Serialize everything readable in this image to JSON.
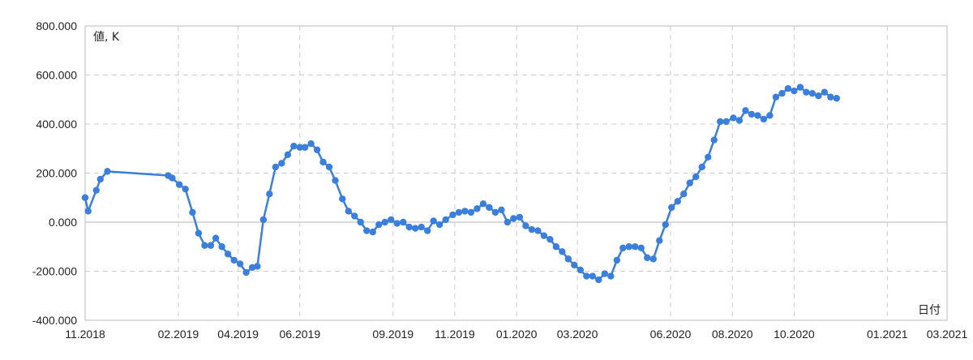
{
  "chart_data": {
    "type": "line",
    "title": "",
    "ylabel": "値, K",
    "xlabel": "日付",
    "ylim": [
      -400000,
      800000
    ],
    "xlim": [
      "2018-11-01",
      "2021-03-01"
    ],
    "y_ticks": [
      {
        "value": 800000,
        "label": "800.000"
      },
      {
        "value": 600000,
        "label": "600.000"
      },
      {
        "value": 400000,
        "label": "400.000"
      },
      {
        "value": 200000,
        "label": "200.000"
      },
      {
        "value": 0,
        "label": "0.000"
      },
      {
        "value": -200000,
        "label": "-200.000"
      },
      {
        "value": -400000,
        "label": "-400.000"
      }
    ],
    "x_ticks": [
      {
        "date": "2018-11-01",
        "label": "11.2018"
      },
      {
        "date": "2019-02-01",
        "label": "02.2019"
      },
      {
        "date": "2019-04-01",
        "label": "04.2019"
      },
      {
        "date": "2019-06-01",
        "label": "06.2019"
      },
      {
        "date": "2019-09-01",
        "label": "09.2019"
      },
      {
        "date": "2019-11-01",
        "label": "11.2019"
      },
      {
        "date": "2020-01-01",
        "label": "01.2020"
      },
      {
        "date": "2020-03-01",
        "label": "03.2020"
      },
      {
        "date": "2020-06-01",
        "label": "06.2020"
      },
      {
        "date": "2020-08-01",
        "label": "08.2020"
      },
      {
        "date": "2020-10-01",
        "label": "10.2020"
      },
      {
        "date": "2021-01-01",
        "label": "01.2021"
      },
      {
        "date": "2021-03-01",
        "label": "03.2021"
      }
    ],
    "grid": true,
    "colors": {
      "series": "#3b7fdc",
      "grid": "#cccccc",
      "axis": "#bbbbbb",
      "baseline": "#b5b5b5"
    },
    "series": [
      {
        "points": [
          {
            "x": "2018-11-01",
            "y": 100000
          },
          {
            "x": "2018-11-04",
            "y": 45000
          },
          {
            "x": "2018-11-12",
            "y": 130000
          },
          {
            "x": "2018-11-16",
            "y": 175000
          },
          {
            "x": "2018-11-23",
            "y": 207000
          },
          {
            "x": "2019-01-22",
            "y": 190000
          },
          {
            "x": "2019-01-26",
            "y": 180000
          },
          {
            "x": "2019-02-02",
            "y": 153000
          },
          {
            "x": "2019-02-08",
            "y": 135000
          },
          {
            "x": "2019-02-15",
            "y": 40000
          },
          {
            "x": "2019-02-21",
            "y": -45000
          },
          {
            "x": "2019-02-27",
            "y": -95000
          },
          {
            "x": "2019-03-05",
            "y": -95000
          },
          {
            "x": "2019-03-10",
            "y": -65000
          },
          {
            "x": "2019-03-16",
            "y": -100000
          },
          {
            "x": "2019-03-22",
            "y": -130000
          },
          {
            "x": "2019-03-28",
            "y": -155000
          },
          {
            "x": "2019-04-03",
            "y": -170000
          },
          {
            "x": "2019-04-09",
            "y": -205000
          },
          {
            "x": "2019-04-15",
            "y": -185000
          },
          {
            "x": "2019-04-20",
            "y": -180000
          },
          {
            "x": "2019-04-26",
            "y": 10000
          },
          {
            "x": "2019-05-02",
            "y": 115000
          },
          {
            "x": "2019-05-08",
            "y": 225000
          },
          {
            "x": "2019-05-14",
            "y": 240000
          },
          {
            "x": "2019-05-20",
            "y": 275000
          },
          {
            "x": "2019-05-26",
            "y": 310000
          },
          {
            "x": "2019-06-01",
            "y": 305000
          },
          {
            "x": "2019-06-06",
            "y": 305000
          },
          {
            "x": "2019-06-12",
            "y": 320000
          },
          {
            "x": "2019-06-18",
            "y": 295000
          },
          {
            "x": "2019-06-24",
            "y": 245000
          },
          {
            "x": "2019-06-30",
            "y": 225000
          },
          {
            "x": "2019-07-06",
            "y": 170000
          },
          {
            "x": "2019-07-13",
            "y": 95000
          },
          {
            "x": "2019-07-19",
            "y": 45000
          },
          {
            "x": "2019-07-25",
            "y": 25000
          },
          {
            "x": "2019-07-31",
            "y": 0
          },
          {
            "x": "2019-08-06",
            "y": -35000
          },
          {
            "x": "2019-08-12",
            "y": -40000
          },
          {
            "x": "2019-08-18",
            "y": -10000
          },
          {
            "x": "2019-08-24",
            "y": 0
          },
          {
            "x": "2019-08-30",
            "y": 10000
          },
          {
            "x": "2019-09-05",
            "y": -5000
          },
          {
            "x": "2019-09-11",
            "y": 0
          },
          {
            "x": "2019-09-17",
            "y": -20000
          },
          {
            "x": "2019-09-23",
            "y": -25000
          },
          {
            "x": "2019-09-29",
            "y": -20000
          },
          {
            "x": "2019-10-05",
            "y": -35000
          },
          {
            "x": "2019-10-11",
            "y": 5000
          },
          {
            "x": "2019-10-17",
            "y": -10000
          },
          {
            "x": "2019-10-23",
            "y": 10000
          },
          {
            "x": "2019-10-30",
            "y": 30000
          },
          {
            "x": "2019-11-05",
            "y": 40000
          },
          {
            "x": "2019-11-11",
            "y": 45000
          },
          {
            "x": "2019-11-17",
            "y": 40000
          },
          {
            "x": "2019-11-23",
            "y": 55000
          },
          {
            "x": "2019-11-29",
            "y": 75000
          },
          {
            "x": "2019-12-05",
            "y": 60000
          },
          {
            "x": "2019-12-11",
            "y": 40000
          },
          {
            "x": "2019-12-17",
            "y": 50000
          },
          {
            "x": "2019-12-23",
            "y": 0
          },
          {
            "x": "2019-12-29",
            "y": 15000
          },
          {
            "x": "2020-01-04",
            "y": 20000
          },
          {
            "x": "2020-01-10",
            "y": -15000
          },
          {
            "x": "2020-01-16",
            "y": -30000
          },
          {
            "x": "2020-01-22",
            "y": -35000
          },
          {
            "x": "2020-01-28",
            "y": -55000
          },
          {
            "x": "2020-02-03",
            "y": -70000
          },
          {
            "x": "2020-02-09",
            "y": -100000
          },
          {
            "x": "2020-02-15",
            "y": -120000
          },
          {
            "x": "2020-02-21",
            "y": -150000
          },
          {
            "x": "2020-02-27",
            "y": -175000
          },
          {
            "x": "2020-03-04",
            "y": -195000
          },
          {
            "x": "2020-03-10",
            "y": -220000
          },
          {
            "x": "2020-03-16",
            "y": -220000
          },
          {
            "x": "2020-03-22",
            "y": -235000
          },
          {
            "x": "2020-03-28",
            "y": -210000
          },
          {
            "x": "2020-04-03",
            "y": -220000
          },
          {
            "x": "2020-04-09",
            "y": -155000
          },
          {
            "x": "2020-04-15",
            "y": -105000
          },
          {
            "x": "2020-04-21",
            "y": -100000
          },
          {
            "x": "2020-04-27",
            "y": -100000
          },
          {
            "x": "2020-05-03",
            "y": -105000
          },
          {
            "x": "2020-05-09",
            "y": -145000
          },
          {
            "x": "2020-05-15",
            "y": -150000
          },
          {
            "x": "2020-05-21",
            "y": -75000
          },
          {
            "x": "2020-05-27",
            "y": -10000
          },
          {
            "x": "2020-06-02",
            "y": 60000
          },
          {
            "x": "2020-06-08",
            "y": 85000
          },
          {
            "x": "2020-06-14",
            "y": 115000
          },
          {
            "x": "2020-06-20",
            "y": 160000
          },
          {
            "x": "2020-06-26",
            "y": 185000
          },
          {
            "x": "2020-07-02",
            "y": 225000
          },
          {
            "x": "2020-07-08",
            "y": 265000
          },
          {
            "x": "2020-07-14",
            "y": 335000
          },
          {
            "x": "2020-07-20",
            "y": 410000
          },
          {
            "x": "2020-07-26",
            "y": 410000
          },
          {
            "x": "2020-08-02",
            "y": 425000
          },
          {
            "x": "2020-08-08",
            "y": 415000
          },
          {
            "x": "2020-08-14",
            "y": 455000
          },
          {
            "x": "2020-08-20",
            "y": 440000
          },
          {
            "x": "2020-08-26",
            "y": 435000
          },
          {
            "x": "2020-09-01",
            "y": 420000
          },
          {
            "x": "2020-09-07",
            "y": 435000
          },
          {
            "x": "2020-09-13",
            "y": 510000
          },
          {
            "x": "2020-09-19",
            "y": 525000
          },
          {
            "x": "2020-09-25",
            "y": 545000
          },
          {
            "x": "2020-10-01",
            "y": 535000
          },
          {
            "x": "2020-10-07",
            "y": 550000
          },
          {
            "x": "2020-10-13",
            "y": 530000
          },
          {
            "x": "2020-10-19",
            "y": 525000
          },
          {
            "x": "2020-10-25",
            "y": 515000
          },
          {
            "x": "2020-10-31",
            "y": 530000
          },
          {
            "x": "2020-11-06",
            "y": 510000
          },
          {
            "x": "2020-11-12",
            "y": 505000
          }
        ]
      }
    ]
  }
}
